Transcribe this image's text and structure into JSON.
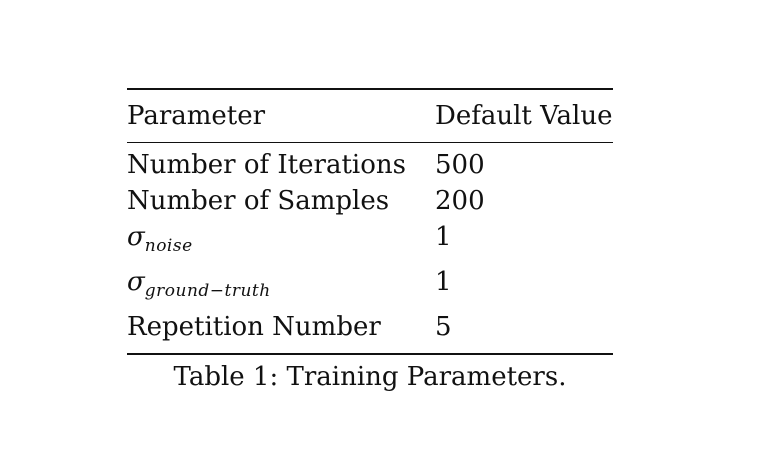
{
  "table": {
    "headers": [
      "Parameter",
      "Default Value"
    ],
    "rows": [
      {
        "param": "Number of Iterations",
        "value": "500"
      },
      {
        "param": "Number of Samples",
        "value": "200"
      },
      {
        "param_symbol": "σ",
        "param_subscript": "noise",
        "value": "1"
      },
      {
        "param_symbol": "σ",
        "param_subscript": "ground−truth",
        "value": "1"
      },
      {
        "param": "Repetition Number",
        "value": "5"
      }
    ]
  },
  "caption": "Table 1: Training Parameters."
}
